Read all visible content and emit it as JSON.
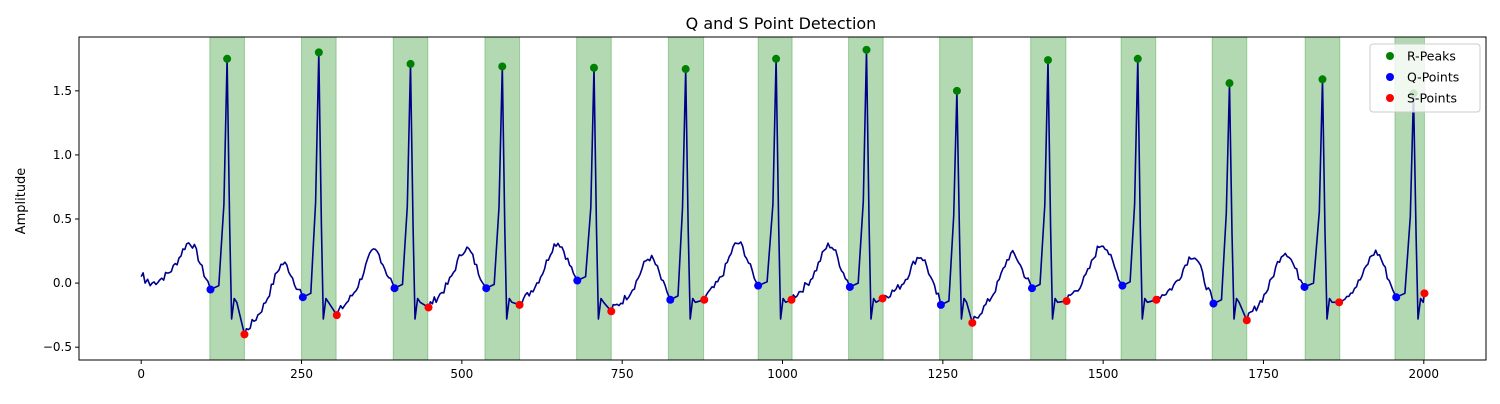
{
  "chart_data": {
    "type": "line",
    "title": "Q and S Point Detection",
    "xlabel": "",
    "ylabel": "Amplitude",
    "xlim": [
      -97,
      2097
    ],
    "ylim": [
      -0.6,
      1.92
    ],
    "xticks": [
      0,
      250,
      500,
      750,
      1000,
      1250,
      1500,
      1750,
      2000
    ],
    "xtick_labels": [
      "0",
      "250",
      "500",
      "750",
      "1000",
      "1250",
      "1500",
      "1750",
      "2000"
    ],
    "yticks": [
      -0.5,
      0.0,
      0.5,
      1.0,
      1.5
    ],
    "ytick_labels": [
      "−0.5",
      "0.0",
      "0.5",
      "1.0",
      "1.5"
    ],
    "grid": false,
    "legend_position": "top-right",
    "colors": {
      "signal": "#00008b",
      "r_peaks": "#008000",
      "q_points": "#0000ff",
      "s_points": "#ff0000",
      "qrs_band": "#008000"
    },
    "qrs_regions": [
      [
        107,
        161
      ],
      [
        250,
        304
      ],
      [
        393,
        447
      ],
      [
        536,
        590
      ],
      [
        679,
        733
      ],
      [
        822,
        877
      ],
      [
        962,
        1015
      ],
      [
        1103,
        1157
      ],
      [
        1245,
        1296
      ],
      [
        1387,
        1442
      ],
      [
        1528,
        1582
      ],
      [
        1670,
        1724
      ],
      [
        1815,
        1869
      ],
      [
        1955,
        2001
      ]
    ],
    "series": [
      {
        "name": "R-Peaks",
        "x": [
          134,
          277,
          420,
          563,
          706,
          849,
          990,
          1131,
          1272,
          1414,
          1554,
          1697,
          1842,
          1984
        ],
        "y": [
          1.75,
          1.8,
          1.71,
          1.69,
          1.68,
          1.67,
          1.75,
          1.82,
          1.5,
          1.74,
          1.75,
          1.56,
          1.59,
          1.48
        ]
      },
      {
        "name": "Q-Points",
        "x": [
          108,
          252,
          395,
          538,
          680,
          825,
          962,
          1105,
          1247,
          1389,
          1530,
          1672,
          1814,
          1957
        ],
        "y": [
          -0.05,
          -0.11,
          -0.04,
          -0.04,
          0.02,
          -0.13,
          -0.02,
          -0.03,
          -0.17,
          -0.04,
          -0.02,
          -0.16,
          -0.03,
          -0.11
        ]
      },
      {
        "name": "S-Points",
        "x": [
          161,
          305,
          448,
          590,
          733,
          878,
          1014,
          1156,
          1296,
          1443,
          1583,
          1724,
          1868,
          2001
        ],
        "y": [
          -0.4,
          -0.25,
          -0.19,
          -0.17,
          -0.22,
          -0.13,
          -0.13,
          -0.12,
          -0.31,
          -0.14,
          -0.13,
          -0.29,
          -0.15,
          -0.08
        ]
      }
    ]
  }
}
